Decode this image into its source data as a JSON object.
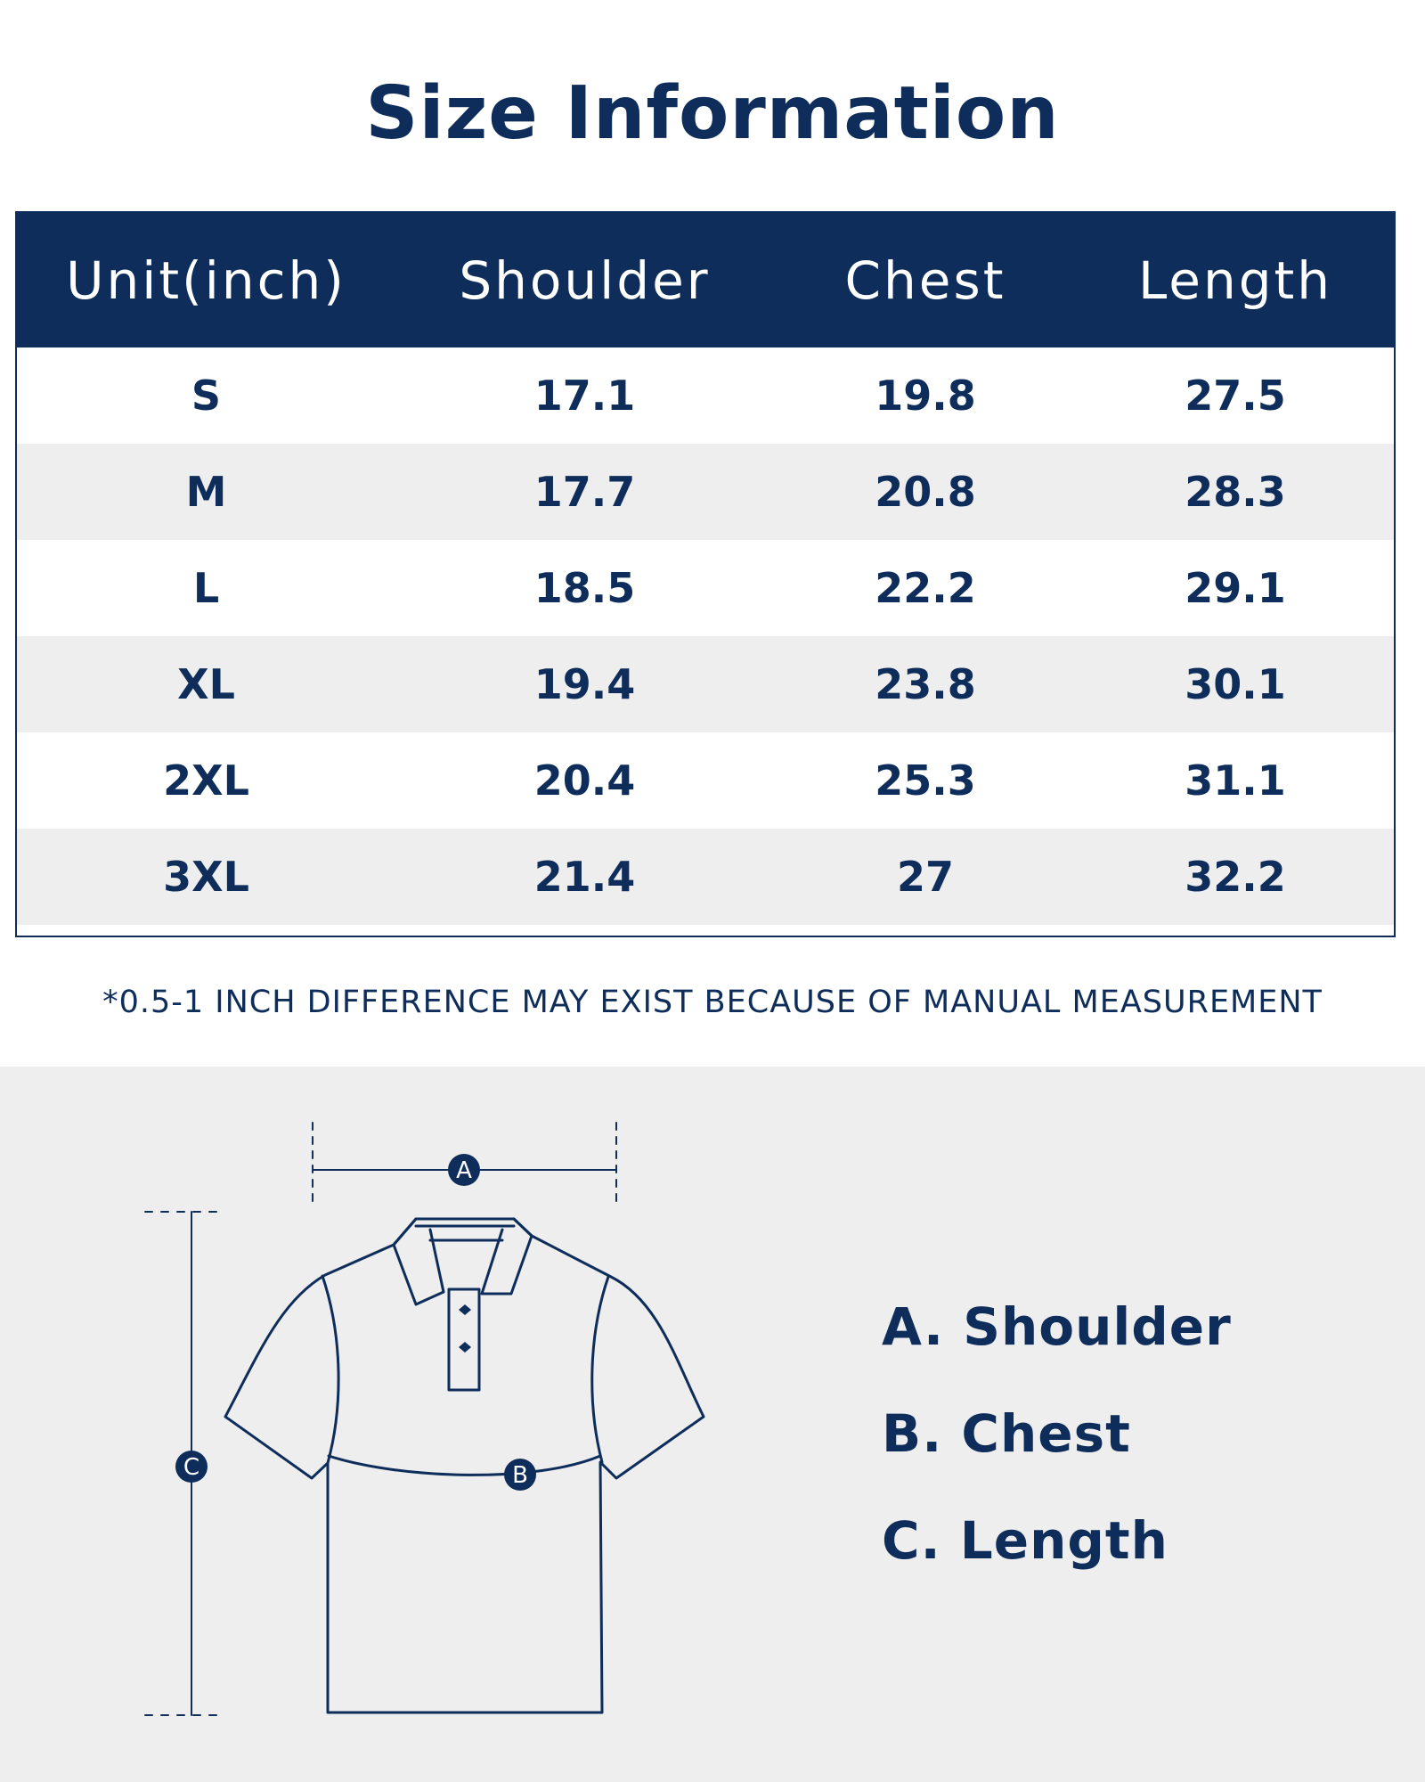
{
  "title": "Size Information",
  "table": {
    "headers": [
      "Unit(inch)",
      "Shoulder",
      "Chest",
      "Length"
    ],
    "rows": [
      [
        "S",
        "17.1",
        "19.8",
        "27.5"
      ],
      [
        "M",
        "17.7",
        "20.8",
        "28.3"
      ],
      [
        "L",
        "18.5",
        "22.2",
        "29.1"
      ],
      [
        "XL",
        "19.4",
        "23.8",
        "30.1"
      ],
      [
        "2XL",
        "20.4",
        "25.3",
        "31.1"
      ],
      [
        "3XL",
        "21.4",
        "27",
        "32.2"
      ]
    ]
  },
  "note": "*0.5-1 INCH DIFFERENCE MAY EXIST BECAUSE OF MANUAL MEASUREMENT",
  "diagram": {
    "markers": [
      "A",
      "B",
      "C"
    ],
    "legend": [
      "A. Shoulder",
      "B. Chest",
      "C. Length"
    ]
  },
  "colors": {
    "navy": "#0e2d5a",
    "panel_bg": "#eeeeee",
    "row_alt": "#eeeeee"
  }
}
